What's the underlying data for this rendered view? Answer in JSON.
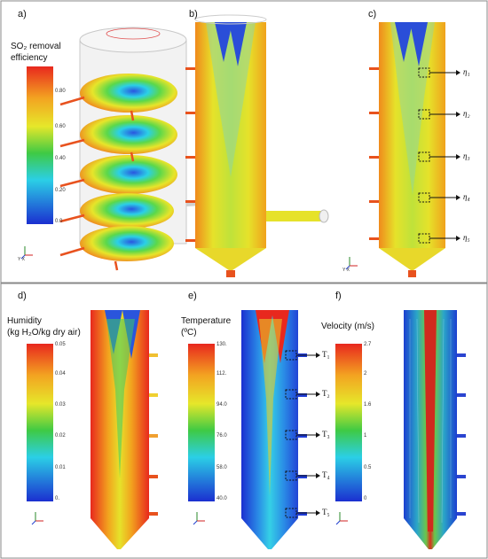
{
  "panels": {
    "a": {
      "label": "a)",
      "legend_title_line1": "SO₂ removal",
      "legend_title_line2": "efficiency",
      "ticks": [
        "0.80",
        "0.60",
        "0.40",
        "0.20",
        "0.0"
      ]
    },
    "b": {
      "label": "b)"
    },
    "c": {
      "label": "c)",
      "probes": [
        "η₁",
        "η₂",
        "η₃",
        "η₄",
        "η₅"
      ]
    },
    "d": {
      "label": "d)",
      "legend_title_line1": "Humidity",
      "legend_title_line2": "(kg H₂O/kg dry air)",
      "ticks": [
        "0.05",
        "0.04",
        "0.03",
        "0.02",
        "0.01",
        "0."
      ]
    },
    "e": {
      "label": "e)",
      "legend_title_line1": "Temperature",
      "legend_title_line2": "(ºC)",
      "ticks": [
        "130.",
        "112.",
        "94.0",
        "76.0",
        "58.0",
        "40.0"
      ],
      "probes": [
        "T₁",
        "T₂",
        "T₃",
        "T₄",
        "T₅"
      ]
    },
    "f": {
      "label": "f)",
      "legend_title_line1": "Velocity (m/s)",
      "ticks": [
        "2.7",
        "2",
        "1.6",
        "1",
        "0.5",
        "0"
      ]
    }
  },
  "axis_triad": {
    "y": "Y",
    "z": "Z",
    "x": "X"
  },
  "colors": {
    "red": "#e8281e",
    "orange": "#f08a1c",
    "yellow": "#e9e62a",
    "green": "#3cc24a",
    "cyan": "#27c7e0",
    "blue": "#1e3bd6"
  }
}
